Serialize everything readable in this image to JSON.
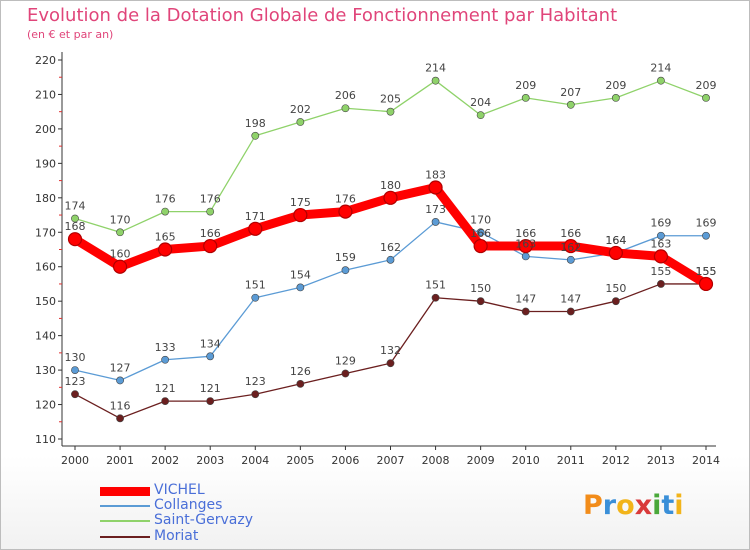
{
  "header": {
    "title": "Evolution de la Dotation Globale de Fonctionnement par Habitant",
    "subtitle": "(en € et par an)"
  },
  "logo": {
    "text": "Proxiti",
    "letters": [
      "P",
      "r",
      "o",
      "x",
      "i",
      "t",
      "i"
    ],
    "colors": [
      "#f28c1a",
      "#3a8fd8",
      "#f2b41a",
      "#d93a3a",
      "#4aa83a",
      "#3a8fd8",
      "#f2b41a"
    ]
  },
  "colors": {
    "VICHEL": "#ff0000",
    "Collanges": "#5b9bd5",
    "Saint-Gervazy": "#8fd26a",
    "Moriat": "#6b1f1f"
  },
  "chart_data": {
    "type": "line",
    "categories": [
      "2000",
      "2001",
      "2002",
      "2003",
      "2004",
      "2005",
      "2006",
      "2007",
      "2008",
      "2009",
      "2010",
      "2011",
      "2012",
      "2013",
      "2014"
    ],
    "ylim": [
      110,
      220
    ],
    "yticks": [
      110,
      120,
      130,
      140,
      150,
      160,
      170,
      180,
      190,
      200,
      210,
      220
    ],
    "grid": false,
    "legend_position": "bottom-left",
    "series": [
      {
        "name": "VICHEL",
        "color": "#ff0000",
        "values": [
          168,
          160,
          165,
          166,
          171,
          175,
          176,
          180,
          183,
          166,
          166,
          166,
          164,
          163,
          155
        ]
      },
      {
        "name": "Collanges",
        "color": "#5b9bd5",
        "values": [
          130,
          127,
          133,
          134,
          151,
          154,
          159,
          162,
          173,
          170,
          163,
          162,
          164,
          169,
          169
        ]
      },
      {
        "name": "Saint-Gervazy",
        "color": "#8fd26a",
        "values": [
          174,
          170,
          176,
          176,
          198,
          202,
          206,
          205,
          214,
          204,
          209,
          207,
          209,
          214,
          209
        ]
      },
      {
        "name": "Moriat",
        "color": "#6b1f1f",
        "values": [
          123,
          116,
          121,
          121,
          123,
          126,
          129,
          132,
          151,
          150,
          147,
          147,
          150,
          155,
          155
        ]
      }
    ]
  }
}
